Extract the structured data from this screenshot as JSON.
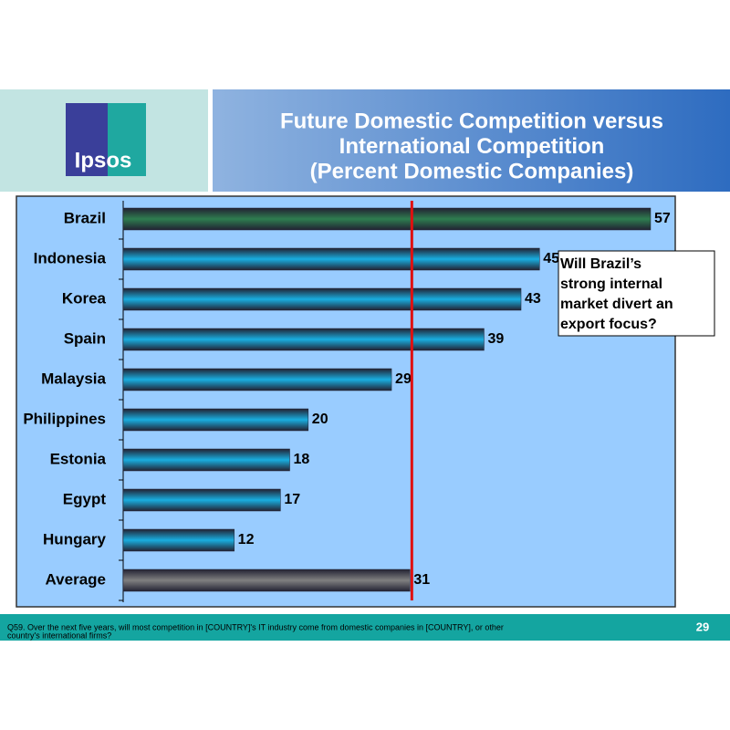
{
  "logo": {
    "text": "Ipsos"
  },
  "chart_data": {
    "type": "bar",
    "orientation": "horizontal",
    "title": [
      "Future Domestic  Competition versus",
      "International Competition",
      "(Percent Domestic Companies)"
    ],
    "categories": [
      "Brazil",
      "Indonesia",
      "Korea",
      "Spain",
      "Malaysia",
      "Philippines",
      "Estonia",
      "Egypt",
      "Hungary",
      "Average"
    ],
    "values": [
      57,
      45,
      43,
      39,
      29,
      20,
      18,
      17,
      12,
      31
    ],
    "colors": [
      "#2e7d4f",
      "#19aee0",
      "#19aee0",
      "#19aee0",
      "#19aee0",
      "#19aee0",
      "#19aee0",
      "#19aee0",
      "#19aee0",
      "#808080"
    ],
    "reference_line": {
      "color": "#e01010"
    },
    "annotation": [
      "Will Brazil’s",
      "strong internal",
      "market divert an",
      "export focus?"
    ]
  },
  "footer": {
    "note": [
      "Q59. Over the next five years, will most competition in [COUNTRY]'s IT industry come from domestic companies in [COUNTRY], or other",
      "country's international firms?"
    ],
    "page": "29"
  }
}
